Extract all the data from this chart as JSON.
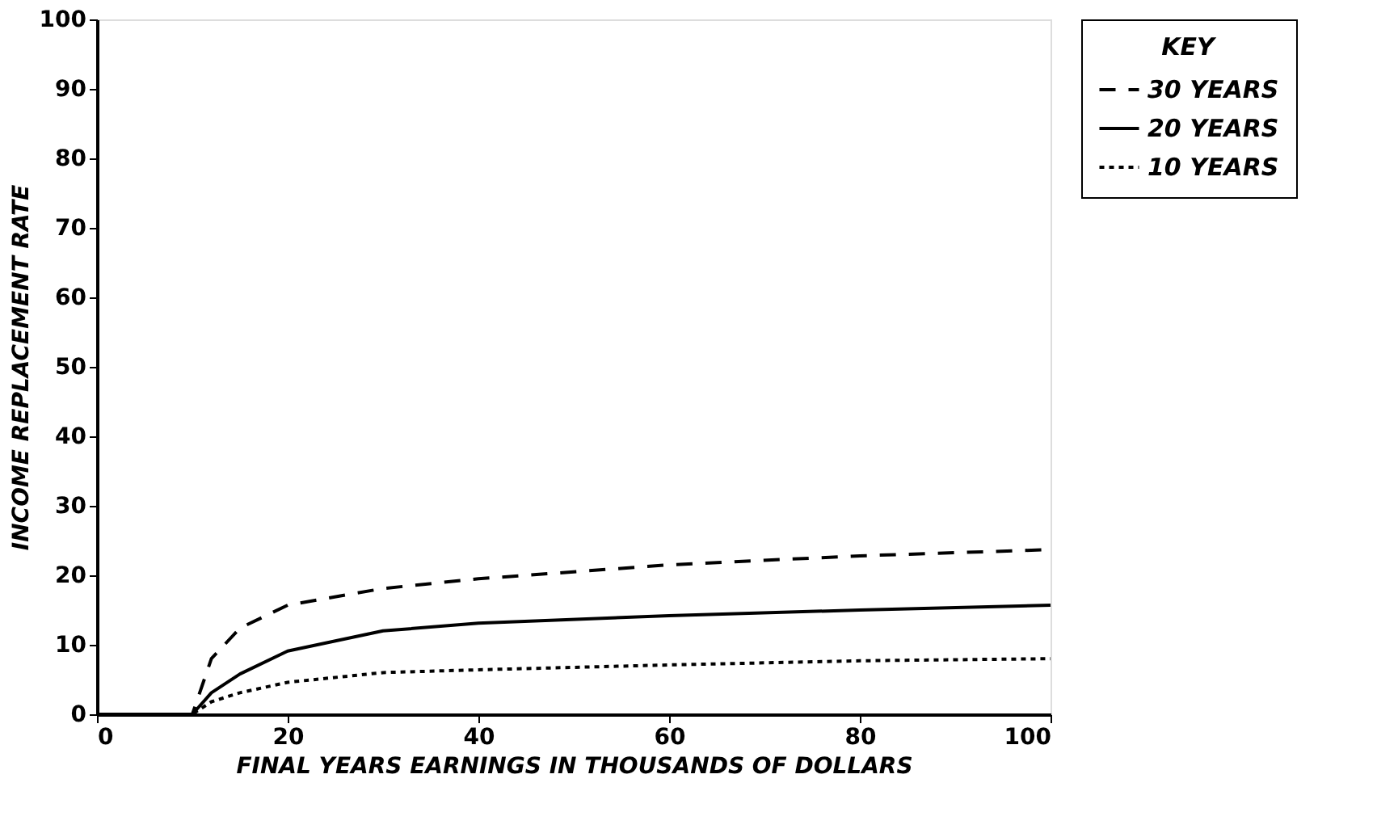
{
  "chart_data": {
    "type": "line",
    "xlabel": "FINAL YEARS EARNINGS IN THOUSANDS OF DOLLARS",
    "ylabel": "INCOME REPLACEMENT RATE",
    "legend_title": "KEY",
    "legend": "top right",
    "grid": false,
    "marker": "none",
    "xlim": [
      0,
      100
    ],
    "ylim": [
      0,
      100
    ],
    "xticks": [
      0,
      20,
      40,
      60,
      80,
      100
    ],
    "yticks": [
      0,
      10,
      20,
      30,
      40,
      50,
      60,
      70,
      80,
      90,
      100
    ],
    "x": [
      0,
      10,
      12,
      15,
      20,
      30,
      40,
      60,
      80,
      100
    ],
    "series": [
      {
        "name": "30 YEARS",
        "color": "#000000",
        "line_style": "dashed",
        "values": [
          0,
          0,
          8,
          12.4,
          15.7,
          18.1,
          19.5,
          21.5,
          22.8,
          23.7
        ]
      },
      {
        "name": "20 YEARS",
        "color": "#000000",
        "line_style": "solid",
        "values": [
          0,
          0,
          3.1,
          5.8,
          9.1,
          12,
          13.1,
          14.2,
          15,
          15.7
        ]
      },
      {
        "name": "10 YEARS",
        "color": "#000000",
        "line_style": "dotted",
        "values": [
          0,
          0,
          1.8,
          3.1,
          4.6,
          6,
          6.4,
          7.1,
          7.7,
          8
        ]
      }
    ]
  }
}
